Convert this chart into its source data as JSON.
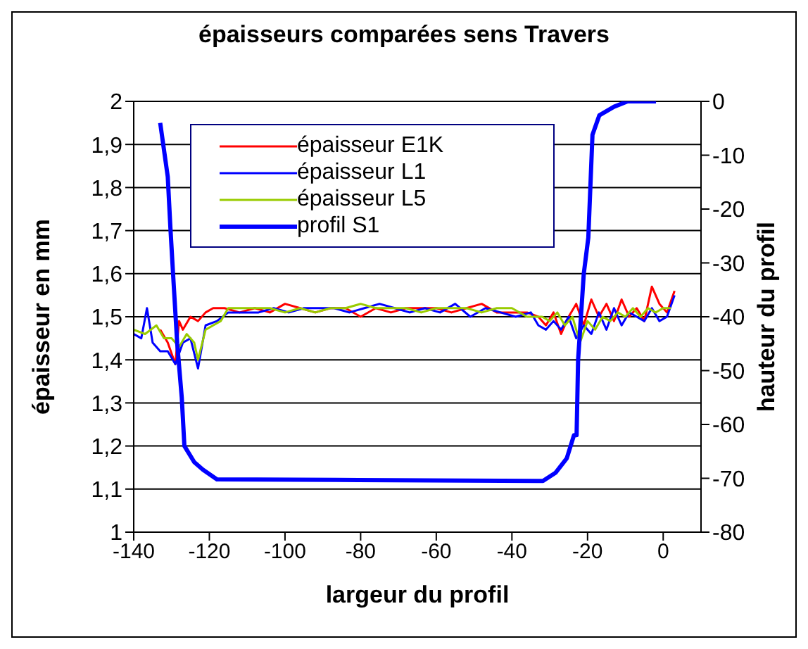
{
  "chart_data": {
    "type": "line",
    "title": "épaisseurs comparées sens Travers",
    "xlabel": "largeur du profil",
    "ylabel": "épaisseur en mm",
    "y2label": "hauteur du profil",
    "xlim": [
      -140,
      10
    ],
    "xticks": [
      -140,
      -120,
      -100,
      -80,
      -60,
      -40,
      -20,
      0
    ],
    "ylim": [
      1,
      2
    ],
    "yticks": [
      {
        "value": 1,
        "label": "1"
      },
      {
        "value": 1.1,
        "label": "1,1"
      },
      {
        "value": 1.2,
        "label": "1,2"
      },
      {
        "value": 1.3,
        "label": "1,3"
      },
      {
        "value": 1.4,
        "label": "1,4"
      },
      {
        "value": 1.5,
        "label": "1,5"
      },
      {
        "value": 1.6,
        "label": "1,6"
      },
      {
        "value": 1.7,
        "label": "1,7"
      },
      {
        "value": 1.8,
        "label": "1,8"
      },
      {
        "value": 1.9,
        "label": "1,9"
      },
      {
        "value": 2,
        "label": "2"
      }
    ],
    "y2lim": [
      -80,
      0
    ],
    "y2ticks": [
      -80,
      -70,
      -60,
      -50,
      -40,
      -30,
      -20,
      -10,
      0
    ],
    "grid": "y",
    "legend": "top",
    "marker": "none",
    "line_style": "solid",
    "series": [
      {
        "name": "épaisseur E1K",
        "color": "#ff0000",
        "x": [
          -133,
          -131,
          -129,
          -128,
          -127,
          -125,
          -123,
          -121,
          -119,
          -116,
          -112,
          -108,
          -104,
          -100,
          -96,
          -92,
          -88,
          -84,
          -80,
          -76,
          -72,
          -68,
          -64,
          -60,
          -56,
          -52,
          -48,
          -44,
          -40,
          -36,
          -33,
          -31,
          -29,
          -27,
          -25,
          -23,
          -21,
          -19,
          -17,
          -15,
          -13,
          -11,
          -9,
          -7,
          -5,
          -3,
          -1,
          1,
          3
        ],
        "values": [
          1.47,
          1.44,
          1.39,
          1.49,
          1.47,
          1.5,
          1.49,
          1.51,
          1.52,
          1.52,
          1.51,
          1.52,
          1.51,
          1.53,
          1.52,
          1.51,
          1.52,
          1.52,
          1.5,
          1.52,
          1.51,
          1.52,
          1.52,
          1.52,
          1.51,
          1.52,
          1.53,
          1.51,
          1.51,
          1.51,
          1.5,
          1.48,
          1.51,
          1.46,
          1.5,
          1.53,
          1.48,
          1.54,
          1.5,
          1.53,
          1.49,
          1.54,
          1.5,
          1.52,
          1.49,
          1.57,
          1.53,
          1.51,
          1.56
        ]
      },
      {
        "name": "épaisseur L1",
        "color": "#0000ff",
        "x": [
          -140,
          -138,
          -136.5,
          -135,
          -133,
          -131,
          -129,
          -127,
          -125,
          -123,
          -121,
          -118,
          -115,
          -111,
          -107,
          -103,
          -99,
          -95,
          -91,
          -87,
          -83,
          -79,
          -75,
          -71,
          -67,
          -63,
          -59,
          -55,
          -51,
          -47,
          -43,
          -39,
          -35,
          -33,
          -31,
          -29,
          -27,
          -25,
          -23,
          -21,
          -19,
          -17,
          -15,
          -13,
          -11,
          -9,
          -7,
          -5,
          -3,
          -1,
          1,
          3
        ],
        "values": [
          1.46,
          1.45,
          1.52,
          1.44,
          1.42,
          1.42,
          1.39,
          1.44,
          1.45,
          1.38,
          1.48,
          1.49,
          1.51,
          1.51,
          1.51,
          1.52,
          1.51,
          1.52,
          1.52,
          1.52,
          1.51,
          1.52,
          1.53,
          1.52,
          1.51,
          1.52,
          1.51,
          1.53,
          1.5,
          1.52,
          1.51,
          1.5,
          1.51,
          1.48,
          1.47,
          1.49,
          1.47,
          1.5,
          1.45,
          1.48,
          1.46,
          1.51,
          1.47,
          1.52,
          1.48,
          1.51,
          1.5,
          1.49,
          1.52,
          1.49,
          1.5,
          1.55
        ]
      },
      {
        "name": "épaisseur L5",
        "color": "#99cc00",
        "x": [
          -140,
          -137,
          -134,
          -132,
          -130,
          -128,
          -126,
          -124,
          -123,
          -121,
          -119,
          -117,
          -115,
          -112,
          -108,
          -104,
          -100,
          -96,
          -92,
          -88,
          -84,
          -80,
          -76,
          -72,
          -68,
          -64,
          -60,
          -56,
          -52,
          -48,
          -44,
          -40,
          -36,
          -32,
          -30,
          -28,
          -26,
          -24,
          -22,
          -20,
          -18,
          -16,
          -14,
          -12,
          -10,
          -8,
          -6,
          -4,
          -2,
          0,
          2
        ],
        "values": [
          1.47,
          1.46,
          1.48,
          1.45,
          1.45,
          1.43,
          1.46,
          1.44,
          1.4,
          1.47,
          1.48,
          1.49,
          1.52,
          1.52,
          1.52,
          1.52,
          1.51,
          1.52,
          1.51,
          1.52,
          1.52,
          1.53,
          1.52,
          1.52,
          1.52,
          1.51,
          1.52,
          1.52,
          1.52,
          1.51,
          1.52,
          1.52,
          1.5,
          1.5,
          1.49,
          1.51,
          1.48,
          1.5,
          1.44,
          1.49,
          1.47,
          1.5,
          1.49,
          1.51,
          1.5,
          1.52,
          1.5,
          1.52,
          1.51,
          1.52,
          1.52
        ]
      },
      {
        "name": "profil S1",
        "color": "#0000ff",
        "axis": "y2",
        "x": [
          -133,
          -131,
          -130.3,
          -129.6,
          -128.5,
          -127.3,
          -126.6,
          -124,
          -121.7,
          -118,
          -86.5,
          -31.8,
          -28.5,
          -25.5,
          -23.6,
          -22.9,
          -22.5,
          -21,
          -19.8,
          -18.7,
          -16.9,
          -13,
          -9.4,
          -1.9
        ],
        "values": [
          -4,
          -14,
          -23.5,
          -32,
          -45,
          -55,
          -64,
          -67,
          -68.4,
          -70.2,
          -70.3,
          -70.5,
          -69,
          -66.3,
          -62,
          -62,
          -48,
          -32,
          -25.3,
          -6.2,
          -2.6,
          -1,
          0,
          0
        ]
      }
    ]
  }
}
